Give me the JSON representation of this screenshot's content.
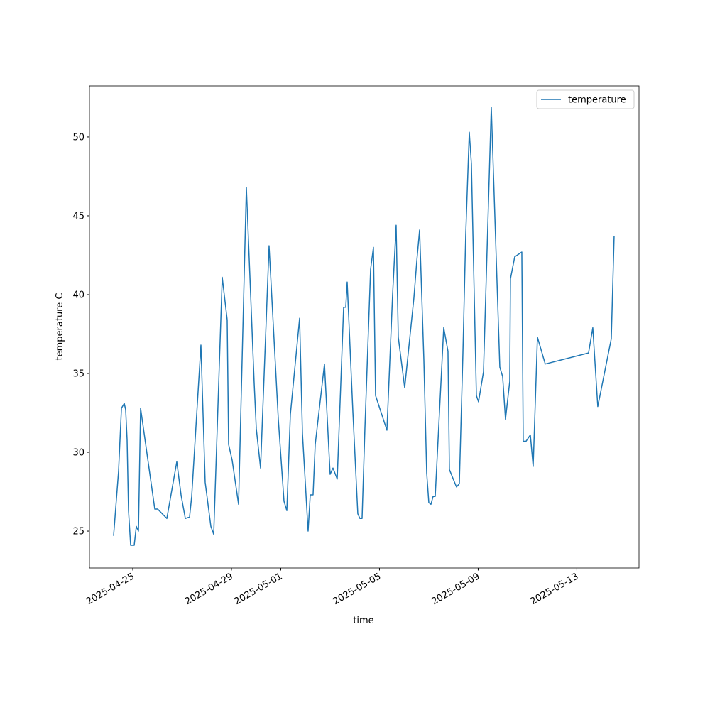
{
  "chart_data": {
    "type": "line",
    "xlabel": "time",
    "ylabel": "temperature C",
    "x": [
      "2025-04-24 05:20",
      "2025-04-24 10:10",
      "2025-04-24 13:00",
      "2025-04-24 15:44",
      "2025-04-24 17:05",
      "2025-04-24 18:28",
      "2025-04-24 19:51",
      "2025-04-24 21:56",
      "2025-04-25 01:23",
      "2025-04-25 03:27",
      "2025-04-25 05:31",
      "2025-04-25 07:36",
      "2025-04-25 21:25",
      "2025-04-26 00:10",
      "2025-04-26 09:09",
      "2025-04-26 18:49",
      "2025-04-26 22:58",
      "2025-04-27 03:07",
      "2025-04-27 07:15",
      "2025-04-27 09:19",
      "2025-04-27 18:18",
      "2025-04-27 22:26",
      "2025-04-28 03:58",
      "2025-04-28 06:44",
      "2025-04-28 15:02",
      "2025-04-28 19:51",
      "2025-04-28 21:14",
      "2025-04-29 00:41",
      "2025-04-29 06:55",
      "2025-04-29 14:30",
      "2025-04-29 22:06",
      "2025-04-30 00:10",
      "2025-04-30 04:19",
      "2025-04-30 12:36",
      "2025-04-30 21:35",
      "2025-05-01 03:06",
      "2025-05-01 05:53",
      "2025-05-01 09:19",
      "2025-05-01 18:18",
      "2025-05-01 21:04",
      "2025-05-02 02:35",
      "2025-05-02 04:40",
      "2025-05-02 07:25",
      "2025-05-02 09:30",
      "2025-05-02 18:29",
      "2025-05-03 00:00",
      "2025-05-03 02:46",
      "2025-05-03 06:54",
      "2025-05-03 13:08",
      "2025-05-03 15:12",
      "2025-05-03 16:35",
      "2025-05-03 22:06",
      "2025-05-04 02:55",
      "2025-05-04 05:01",
      "2025-05-04 07:05",
      "2025-05-04 09:50",
      "2025-05-04 15:22",
      "2025-05-04 18:07",
      "2025-05-04 20:12",
      "2025-05-05 07:15",
      "2025-05-05 12:46",
      "2025-05-05 16:13",
      "2025-05-05 18:18",
      "2025-05-06 00:32",
      "2025-05-06 09:30",
      "2025-05-06 12:16",
      "2025-05-06 15:02",
      "2025-05-06 19:10",
      "2025-05-06 21:56",
      "2025-05-07 00:00",
      "2025-05-07 02:04",
      "2025-05-07 04:09",
      "2025-05-07 06:13",
      "2025-05-07 14:30",
      "2025-05-07 18:39",
      "2025-05-07 20:02",
      "2025-05-08 02:55",
      "2025-05-08 05:41",
      "2025-05-08 09:08",
      "2025-05-08 11:54",
      "2025-05-08 15:22",
      "2025-05-08 17:26",
      "2025-05-08 22:17",
      "2025-05-09 00:21",
      "2025-05-09 05:11",
      "2025-05-09 12:46",
      "2025-05-09 21:04",
      "2025-05-09 23:50",
      "2025-05-10 02:35",
      "2025-05-10 06:44",
      "2025-05-10 07:25",
      "2025-05-10 11:34",
      "2025-05-10 18:29",
      "2025-05-10 19:51",
      "2025-05-10 22:37",
      "2025-05-11 02:46",
      "2025-05-11 05:31",
      "2025-05-11 09:40",
      "2025-05-11 17:16",
      "2025-05-13 11:23",
      "2025-05-13 15:32",
      "2025-05-13 20:22",
      "2025-05-14 09:30",
      "2025-05-14 12:16"
    ],
    "series": [
      {
        "name": "temperature",
        "color": "#1f77b4",
        "values": [
          24.7,
          28.8,
          32.8,
          33.1,
          32.7,
          30.8,
          26.3,
          24.1,
          24.1,
          25.3,
          25.0,
          32.8,
          26.4,
          26.4,
          25.8,
          29.4,
          27.3,
          25.8,
          25.9,
          27.2,
          36.8,
          28.1,
          25.3,
          24.8,
          41.1,
          38.4,
          30.5,
          29.5,
          26.7,
          46.8,
          34.4,
          31.5,
          29.0,
          43.1,
          32.1,
          26.9,
          26.3,
          32.4,
          38.5,
          31.2,
          25.0,
          27.3,
          27.3,
          30.5,
          35.6,
          28.6,
          29.0,
          28.3,
          39.2,
          39.2,
          40.8,
          32.6,
          26.1,
          25.8,
          25.8,
          31.5,
          41.6,
          43.0,
          33.6,
          31.4,
          40.0,
          44.4,
          37.3,
          34.1,
          39.8,
          42.1,
          44.1,
          35.9,
          28.7,
          26.8,
          26.7,
          27.2,
          27.2,
          37.9,
          36.4,
          28.9,
          27.8,
          28.0,
          36.2,
          43.8,
          50.3,
          48.3,
          33.6,
          33.2,
          35.1,
          51.9,
          35.4,
          34.8,
          32.1,
          34.5,
          41.0,
          42.4,
          42.7,
          30.7,
          30.7,
          31.1,
          29.1,
          37.3,
          35.6,
          36.3,
          37.9,
          32.9,
          37.2,
          43.7
        ]
      }
    ],
    "xlim": [
      "2025-04-23 05:52",
      "2025-05-15 12:29"
    ],
    "xticks": [
      "2025-04-25",
      "2025-04-29",
      "2025-05-01",
      "2025-05-05",
      "2025-05-09",
      "2025-05-13"
    ],
    "ylim": [
      22.66,
      53.24
    ],
    "yticks": [
      25,
      30,
      35,
      40,
      45,
      50
    ],
    "grid": false,
    "legend": "upper right"
  }
}
